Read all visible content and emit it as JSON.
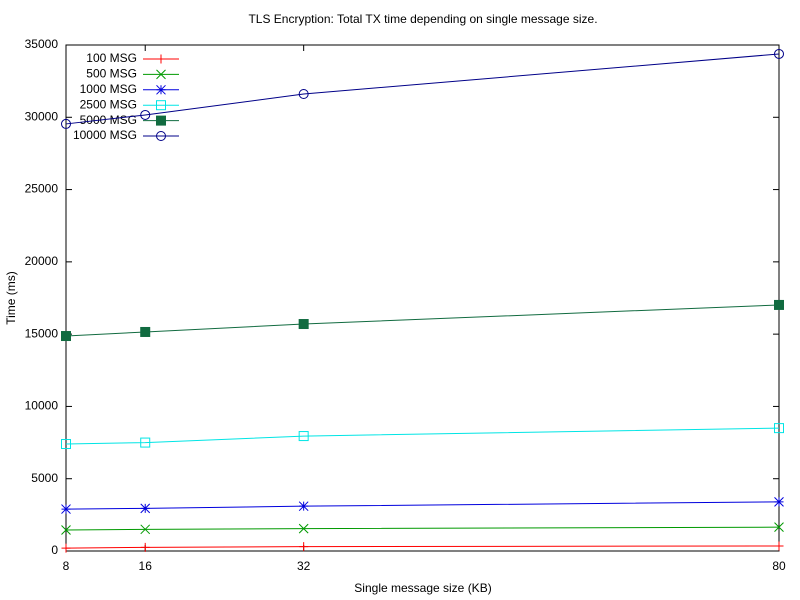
{
  "chart_data": {
    "type": "line",
    "title": "TLS Encryption: Total TX time depending on single message size.",
    "x_label": "Single message size (KB)",
    "y_label": "Time (ms)",
    "x": [
      8,
      16,
      32,
      80
    ],
    "xlim": [
      8,
      80
    ],
    "xticks": [
      8,
      16,
      32,
      80
    ],
    "ylim": [
      0,
      35000
    ],
    "yticks": [
      0,
      5000,
      10000,
      15000,
      20000,
      25000,
      30000,
      35000
    ],
    "legend": "top-left",
    "series": [
      {
        "name": "100 MSG",
        "color": "#ff0000",
        "marker": "plus",
        "values": [
          200,
          250,
          300,
          350
        ]
      },
      {
        "name": "500 MSG",
        "color": "#009900",
        "marker": "cross",
        "values": [
          1450,
          1500,
          1550,
          1650
        ]
      },
      {
        "name": "1000 MSG",
        "color": "#0000dd",
        "marker": "star",
        "values": [
          2900,
          2950,
          3100,
          3400
        ]
      },
      {
        "name": "2500 MSG",
        "color": "#00e5e5",
        "marker": "square",
        "values": [
          7400,
          7500,
          7950,
          8500
        ]
      },
      {
        "name": "5000 MSG",
        "color": "#116b40",
        "marker": "filled-square",
        "values": [
          14870,
          15150,
          15700,
          17020
        ]
      },
      {
        "name": "10000 MSG",
        "color": "#000088",
        "marker": "circle",
        "values": [
          29540,
          30160,
          31610,
          34380
        ]
      }
    ]
  }
}
